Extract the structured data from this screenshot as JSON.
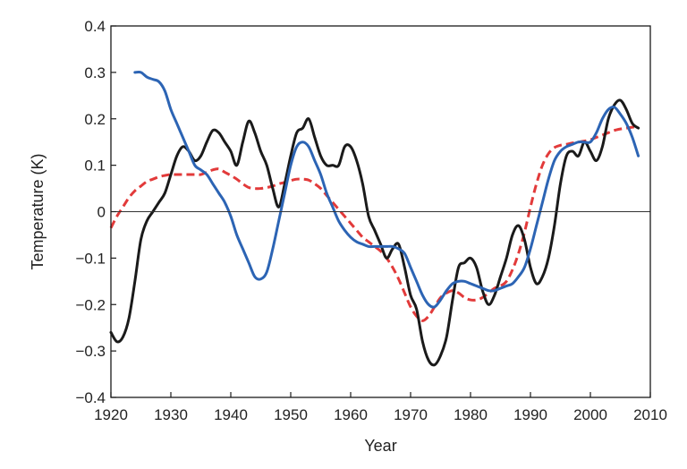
{
  "chart_data": {
    "type": "line",
    "title": "",
    "xlabel": "Year",
    "ylabel": "Temperature (K)",
    "xlim": [
      1920,
      2010
    ],
    "ylim": [
      -0.4,
      0.4
    ],
    "xticks": [
      1920,
      1930,
      1940,
      1950,
      1960,
      1970,
      1980,
      1990,
      2000,
      2010
    ],
    "yticks": [
      0.4,
      0.3,
      0.2,
      0.1,
      0,
      -0.1,
      -0.2,
      -0.3,
      -0.4
    ],
    "ytick_labels": [
      "0.4",
      "0.3",
      "0.2",
      "0.1",
      "0",
      "−0.1",
      "−0.2",
      "−0.3",
      "−0.4"
    ],
    "zero_line": true,
    "grid": false,
    "legend": "none",
    "series": [
      {
        "color": "#1a1a1a",
        "style": "solid",
        "x": [
          1920,
          1921,
          1922,
          1923,
          1924,
          1925,
          1926,
          1927,
          1928,
          1929,
          1930,
          1931,
          1932,
          1933,
          1934,
          1935,
          1936,
          1937,
          1938,
          1939,
          1940,
          1941,
          1942,
          1943,
          1944,
          1945,
          1946,
          1947,
          1948,
          1949,
          1950,
          1951,
          1952,
          1953,
          1954,
          1955,
          1956,
          1957,
          1958,
          1959,
          1960,
          1961,
          1962,
          1963,
          1964,
          1965,
          1966,
          1967,
          1968,
          1969,
          1970,
          1971,
          1972,
          1973,
          1974,
          1975,
          1976,
          1977,
          1978,
          1979,
          1980,
          1981,
          1982,
          1983,
          1984,
          1985,
          1986,
          1987,
          1988,
          1989,
          1990,
          1991,
          1992,
          1993,
          1994,
          1995,
          1996,
          1997,
          1998,
          1999,
          2000,
          2001,
          2002,
          2003,
          2004,
          2005,
          2006,
          2007,
          2008
        ],
        "y": [
          -0.26,
          -0.28,
          -0.27,
          -0.23,
          -0.15,
          -0.06,
          -0.02,
          0.0,
          0.02,
          0.04,
          0.08,
          0.12,
          0.14,
          0.13,
          0.11,
          0.12,
          0.15,
          0.175,
          0.17,
          0.15,
          0.13,
          0.1,
          0.15,
          0.195,
          0.17,
          0.13,
          0.1,
          0.05,
          0.01,
          0.06,
          0.12,
          0.17,
          0.18,
          0.2,
          0.16,
          0.12,
          0.1,
          0.1,
          0.1,
          0.14,
          0.14,
          0.11,
          0.06,
          -0.01,
          -0.04,
          -0.07,
          -0.1,
          -0.08,
          -0.07,
          -0.12,
          -0.18,
          -0.21,
          -0.28,
          -0.32,
          -0.33,
          -0.31,
          -0.27,
          -0.19,
          -0.12,
          -0.11,
          -0.1,
          -0.12,
          -0.17,
          -0.2,
          -0.18,
          -0.14,
          -0.1,
          -0.05,
          -0.03,
          -0.06,
          -0.12,
          -0.155,
          -0.14,
          -0.1,
          -0.03,
          0.06,
          0.12,
          0.13,
          0.12,
          0.15,
          0.13,
          0.11,
          0.14,
          0.2,
          0.23,
          0.24,
          0.22,
          0.19,
          0.18
        ]
      },
      {
        "color": "#2c64b4",
        "style": "solid",
        "x": [
          1924,
          1925,
          1926,
          1927,
          1928,
          1929,
          1930,
          1931,
          1932,
          1933,
          1934,
          1935,
          1936,
          1937,
          1938,
          1939,
          1940,
          1941,
          1942,
          1943,
          1944,
          1945,
          1946,
          1947,
          1948,
          1949,
          1950,
          1951,
          1952,
          1953,
          1954,
          1955,
          1956,
          1957,
          1958,
          1959,
          1960,
          1961,
          1962,
          1963,
          1964,
          1965,
          1966,
          1967,
          1968,
          1969,
          1970,
          1971,
          1972,
          1973,
          1974,
          1975,
          1976,
          1977,
          1978,
          1979,
          1980,
          1981,
          1982,
          1983,
          1984,
          1985,
          1986,
          1987,
          1988,
          1989,
          1990,
          1991,
          1992,
          1993,
          1994,
          1995,
          1996,
          1997,
          1998,
          1999,
          2000,
          2001,
          2002,
          2003,
          2004,
          2005,
          2006,
          2007,
          2008
        ],
        "y": [
          0.3,
          0.3,
          0.29,
          0.285,
          0.28,
          0.26,
          0.22,
          0.19,
          0.16,
          0.13,
          0.1,
          0.09,
          0.08,
          0.06,
          0.04,
          0.02,
          -0.01,
          -0.05,
          -0.08,
          -0.11,
          -0.14,
          -0.145,
          -0.13,
          -0.08,
          -0.02,
          0.04,
          0.1,
          0.14,
          0.15,
          0.14,
          0.11,
          0.08,
          0.04,
          0.01,
          -0.02,
          -0.04,
          -0.055,
          -0.065,
          -0.07,
          -0.075,
          -0.075,
          -0.075,
          -0.075,
          -0.075,
          -0.08,
          -0.09,
          -0.12,
          -0.15,
          -0.18,
          -0.2,
          -0.205,
          -0.19,
          -0.17,
          -0.155,
          -0.15,
          -0.15,
          -0.155,
          -0.16,
          -0.165,
          -0.17,
          -0.17,
          -0.165,
          -0.16,
          -0.155,
          -0.14,
          -0.12,
          -0.08,
          -0.03,
          0.02,
          0.07,
          0.11,
          0.13,
          0.14,
          0.145,
          0.15,
          0.15,
          0.15,
          0.17,
          0.2,
          0.22,
          0.225,
          0.21,
          0.19,
          0.16,
          0.12
        ]
      },
      {
        "color": "#e23a3a",
        "style": "dashed",
        "x": [
          1920,
          1921,
          1922,
          1923,
          1924,
          1925,
          1926,
          1927,
          1928,
          1929,
          1930,
          1931,
          1932,
          1933,
          1934,
          1935,
          1936,
          1937,
          1938,
          1939,
          1940,
          1941,
          1942,
          1943,
          1944,
          1945,
          1946,
          1947,
          1948,
          1949,
          1950,
          1951,
          1952,
          1953,
          1954,
          1955,
          1956,
          1957,
          1958,
          1959,
          1960,
          1961,
          1962,
          1963,
          1964,
          1965,
          1966,
          1967,
          1968,
          1969,
          1970,
          1971,
          1972,
          1973,
          1974,
          1975,
          1976,
          1977,
          1978,
          1979,
          1980,
          1981,
          1982,
          1983,
          1984,
          1985,
          1986,
          1987,
          1988,
          1989,
          1990,
          1991,
          1992,
          1993,
          1994,
          1995,
          1996,
          1997,
          1998,
          1999,
          2000,
          2001,
          2002,
          2003,
          2004,
          2005,
          2006,
          2007,
          2008
        ],
        "y": [
          -0.035,
          -0.01,
          0.01,
          0.03,
          0.045,
          0.055,
          0.065,
          0.07,
          0.075,
          0.078,
          0.08,
          0.08,
          0.08,
          0.08,
          0.08,
          0.08,
          0.085,
          0.09,
          0.092,
          0.085,
          0.078,
          0.07,
          0.06,
          0.052,
          0.05,
          0.05,
          0.052,
          0.055,
          0.06,
          0.063,
          0.067,
          0.07,
          0.07,
          0.068,
          0.06,
          0.05,
          0.035,
          0.02,
          0.005,
          -0.01,
          -0.025,
          -0.04,
          -0.055,
          -0.065,
          -0.075,
          -0.085,
          -0.1,
          -0.12,
          -0.145,
          -0.175,
          -0.205,
          -0.225,
          -0.235,
          -0.225,
          -0.205,
          -0.185,
          -0.175,
          -0.17,
          -0.175,
          -0.185,
          -0.19,
          -0.19,
          -0.185,
          -0.175,
          -0.165,
          -0.16,
          -0.15,
          -0.125,
          -0.09,
          -0.045,
          0.01,
          0.06,
          0.1,
          0.125,
          0.138,
          0.143,
          0.145,
          0.148,
          0.15,
          0.152,
          0.155,
          0.16,
          0.165,
          0.17,
          0.175,
          0.178,
          0.18,
          0.182,
          0.183
        ]
      }
    ]
  }
}
